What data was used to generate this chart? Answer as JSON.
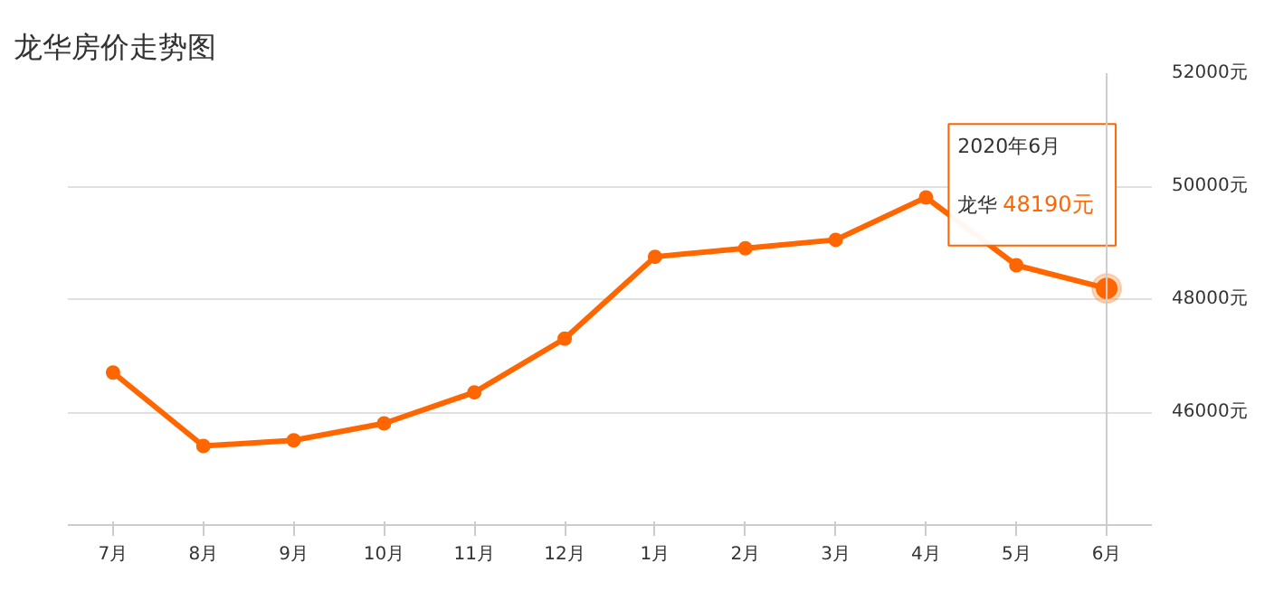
{
  "chart_data": {
    "type": "line",
    "title": "龙华房价走势图",
    "categories": [
      "7月",
      "8月",
      "9月",
      "10月",
      "11月",
      "12月",
      "1月",
      "2月",
      "3月",
      "4月",
      "5月",
      "6月"
    ],
    "series": [
      {
        "name": "龙华",
        "color": "#ff6600",
        "values": [
          46700,
          45400,
          45500,
          45800,
          46350,
          47300,
          48750,
          48900,
          49050,
          49800,
          48600,
          48190
        ],
        "value_labels": [
          null,
          null,
          null,
          null,
          null,
          null,
          null,
          null,
          null,
          null,
          null,
          "48190元"
        ]
      }
    ],
    "ylim": [
      44000,
      52000
    ],
    "yticks": [
      {
        "value": 46000,
        "label": "46000元"
      },
      {
        "value": 48000,
        "label": "48000元"
      },
      {
        "value": 50000,
        "label": "50000元"
      },
      {
        "value": 52000,
        "label": "52000元"
      }
    ],
    "grid": "y",
    "marker": "circle",
    "line_style": "solid",
    "ref_lines": [
      {
        "axis": "x",
        "value": "6月",
        "label": null,
        "color": "#cccccc"
      }
    ],
    "annotations": [
      "2020年6月"
    ]
  }
}
